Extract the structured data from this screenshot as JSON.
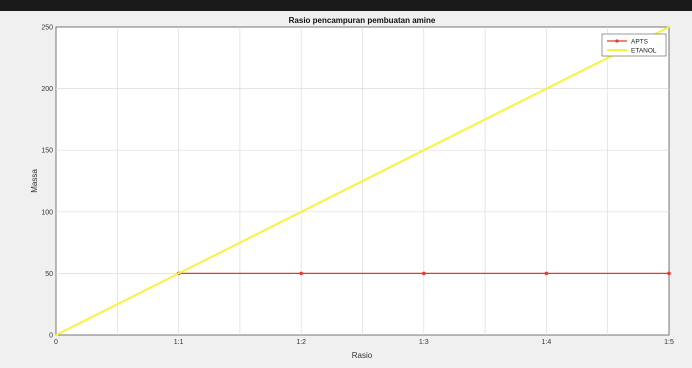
{
  "chart_data": {
    "type": "line",
    "title": "Rasio pencampuran pembuatan amine",
    "xlabel": "Rasio",
    "ylabel": "Massa",
    "categories": [
      "0",
      "1:1",
      "1:2",
      "1:3",
      "1:4",
      "1:5"
    ],
    "x": [
      0,
      1,
      2,
      3,
      4,
      5
    ],
    "xlim": [
      0,
      5
    ],
    "ylim": [
      0,
      250
    ],
    "yticks": [
      0,
      50,
      100,
      150,
      200,
      250
    ],
    "grid": true,
    "legend_position": "top-right",
    "series": [
      {
        "name": "APTS",
        "x": [
          1,
          2,
          3,
          4,
          5
        ],
        "values": [
          50,
          50,
          50,
          50,
          50
        ],
        "color": "#e8392f",
        "marker": "*"
      },
      {
        "name": "ETANOL",
        "x": [
          0,
          1,
          2,
          3,
          4,
          5
        ],
        "values": [
          0,
          50,
          100,
          150,
          200,
          250
        ],
        "color": "#f5f53c",
        "marker": "none"
      }
    ]
  }
}
